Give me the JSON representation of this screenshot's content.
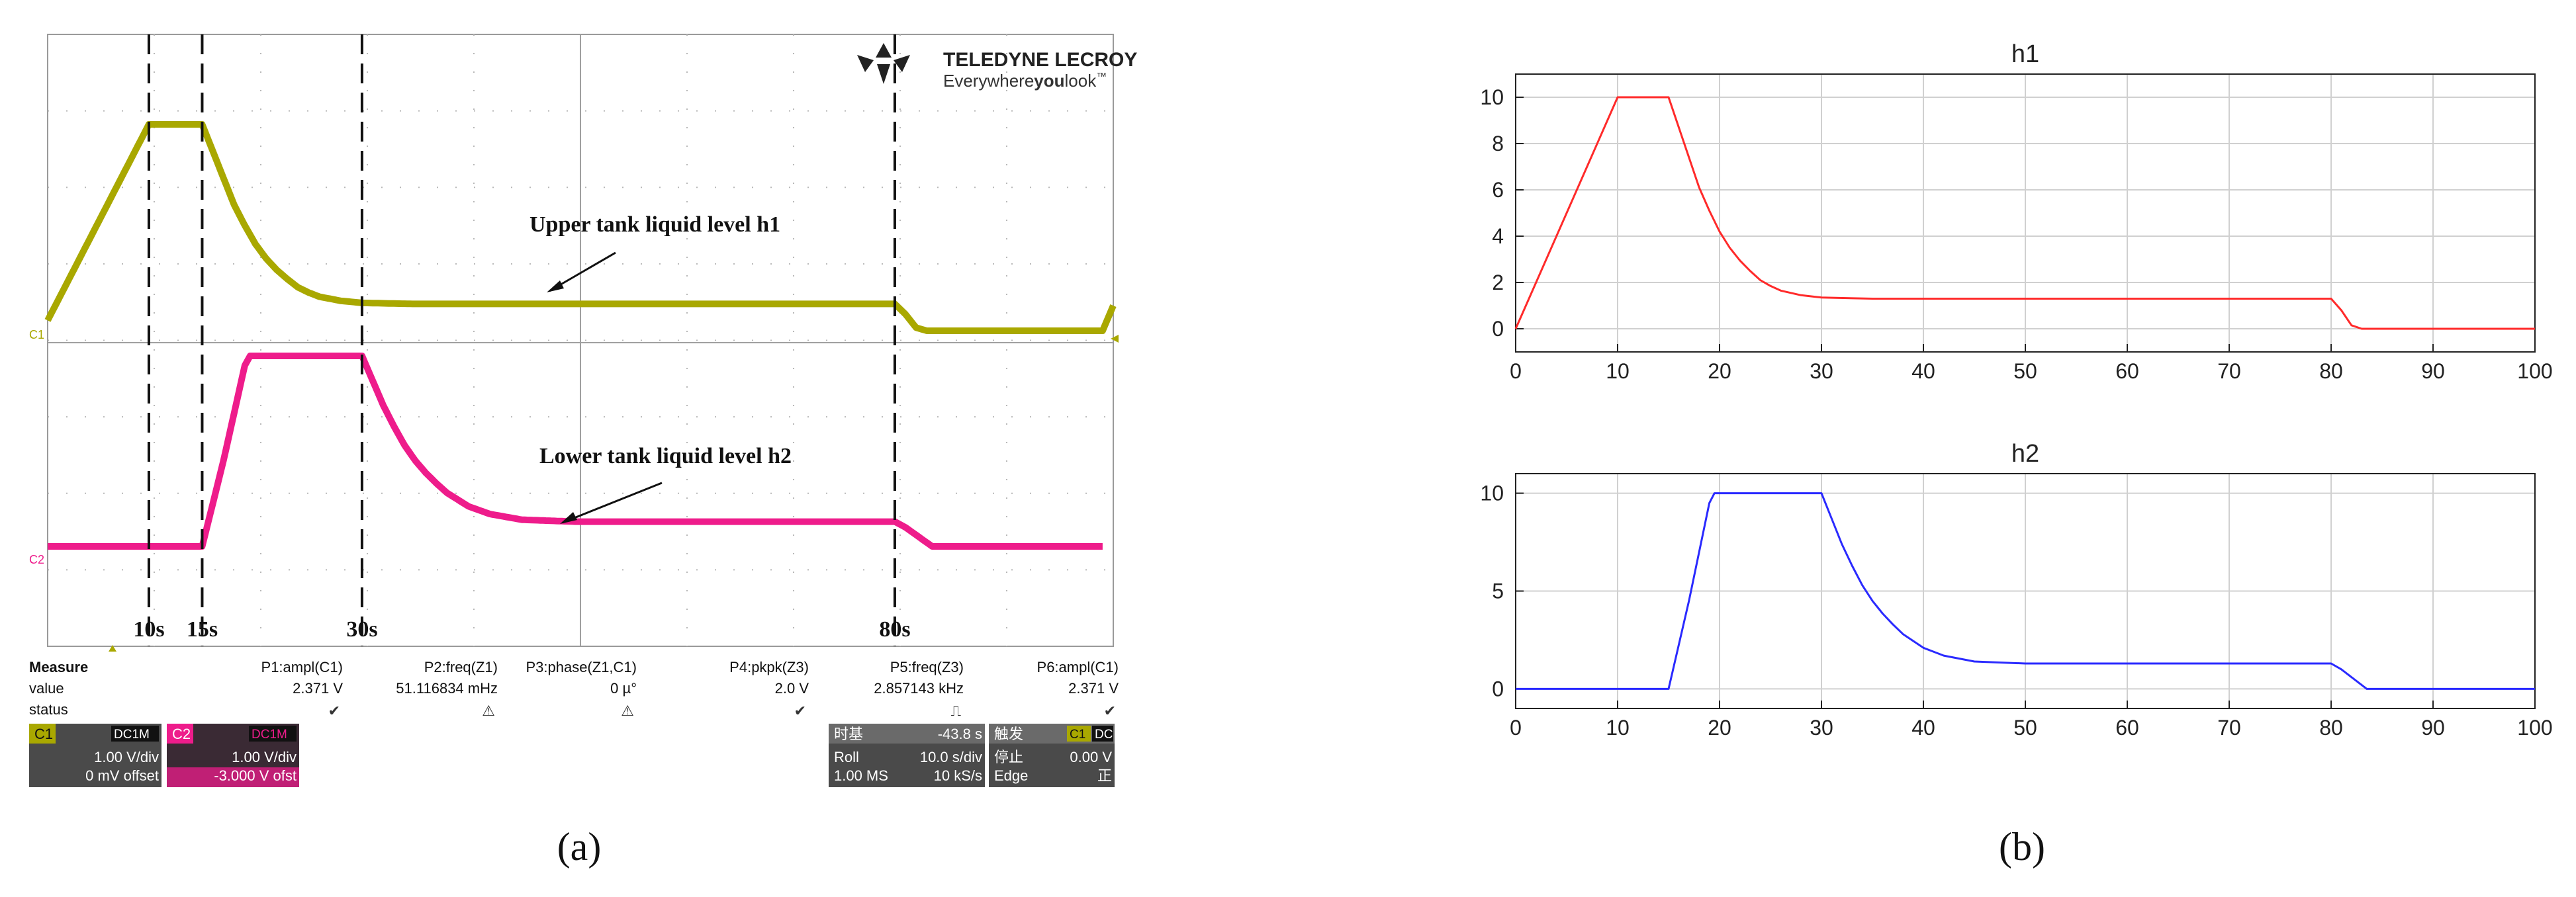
{
  "colors": {
    "c1": "#a9a800",
    "c2": "#ee1c8b",
    "h1_line": "#ff2a2a",
    "h2_line": "#2a2aff",
    "scope_grid": "#b8b8b8",
    "panel_bg": "#e9e9e9"
  },
  "panel_labels": [
    "(a)",
    "(b)"
  ],
  "scope": {
    "brand_name": "TELEDYNE LECROY",
    "brand_tagline_plain_1": "Everywhere",
    "brand_tagline_bold": "you",
    "brand_tagline_plain_2": "look",
    "brand_tm": "™",
    "ch1_tag": "C1",
    "ch2_tag": "C2",
    "time_markers": [
      {
        "label": "10s",
        "t": 10
      },
      {
        "label": "15s",
        "t": 15
      },
      {
        "label": "30s",
        "t": 30
      },
      {
        "label": "80s",
        "t": 80
      }
    ],
    "annotation_h1": "Upper tank liquid level h1",
    "annotation_h2": "Lower tank liquid level h2",
    "measure": {
      "row_labels": [
        "Measure",
        "value",
        "status"
      ],
      "columns": [
        {
          "param": "P1:ampl(C1)",
          "value": "2.371 V",
          "status": "✔"
        },
        {
          "param": "P2:freq(Z1)",
          "value": "51.116834 mHz",
          "status": "⚠"
        },
        {
          "param": "P3:phase(Z1,C1)",
          "value": "0 µ°",
          "status": "⚠"
        },
        {
          "param": "P4:pkpk(Z3)",
          "value": "2.0 V",
          "status": "✔"
        },
        {
          "param": "P5:freq(Z3)",
          "value": "2.857143 kHz",
          "status": "⎍"
        },
        {
          "param": "P6:ampl(C1)",
          "value": "2.371 V",
          "status": "✔"
        }
      ]
    },
    "channel_boxes": [
      {
        "tag": "C1",
        "coupling": "DC1M",
        "vdiv": "1.00 V/div",
        "offset": "0 mV offset"
      },
      {
        "tag": "C2",
        "coupling": "DC1M",
        "vdiv": "1.00 V/div",
        "offset": "-3.000 V ofst"
      }
    ],
    "timebase": {
      "title": "时基",
      "delay": "-43.8 s",
      "mode": "Roll",
      "tdiv": "10.0 s/div",
      "samples": "1.00 MS",
      "rate": "10 kS/s"
    },
    "trigger": {
      "title": "触发",
      "source_tag": "C1",
      "coupling_tag": "DC",
      "state": "停止",
      "level": "0.00 V",
      "type": "Edge",
      "slope": "正"
    }
  },
  "chart_data": [
    {
      "type": "line",
      "title": "h1",
      "xlim": [
        0,
        100
      ],
      "ylim": [
        -1,
        11
      ],
      "xticks": [
        0,
        10,
        20,
        30,
        40,
        50,
        60,
        70,
        80,
        90,
        100
      ],
      "yticks": [
        0,
        2,
        4,
        6,
        8,
        10
      ],
      "grid": true,
      "series": [
        {
          "x": [
            0,
            10,
            15,
            16,
            17,
            18,
            19,
            20,
            21,
            22,
            23,
            24,
            25,
            26,
            28,
            30,
            35,
            40,
            50,
            60,
            70,
            80,
            81,
            82,
            83,
            90,
            100
          ],
          "y": [
            0,
            10,
            10,
            8.7,
            7.4,
            6.1,
            5.1,
            4.2,
            3.5,
            2.95,
            2.5,
            2.1,
            1.85,
            1.65,
            1.45,
            1.35,
            1.3,
            1.3,
            1.3,
            1.3,
            1.3,
            1.3,
            0.8,
            0.15,
            0.0,
            0.0,
            0.0
          ]
        }
      ]
    },
    {
      "type": "line",
      "title": "h2",
      "xlim": [
        0,
        100
      ],
      "ylim": [
        -1,
        11
      ],
      "xticks": [
        0,
        10,
        20,
        30,
        40,
        50,
        60,
        70,
        80,
        90,
        100
      ],
      "yticks": [
        0,
        5,
        10
      ],
      "grid": true,
      "series": [
        {
          "x": [
            0,
            15,
            17,
            19,
            19.5,
            30,
            31,
            32,
            33,
            34,
            35,
            36,
            37,
            38,
            40,
            42,
            45,
            50,
            60,
            70,
            80,
            81,
            82,
            83.5,
            90,
            100
          ],
          "y": [
            0,
            0,
            4.5,
            9.5,
            10,
            10,
            8.7,
            7.4,
            6.3,
            5.3,
            4.5,
            3.85,
            3.3,
            2.8,
            2.1,
            1.7,
            1.4,
            1.3,
            1.3,
            1.3,
            1.3,
            1.0,
            0.6,
            0.0,
            0.0,
            0.0
          ]
        }
      ]
    }
  ]
}
